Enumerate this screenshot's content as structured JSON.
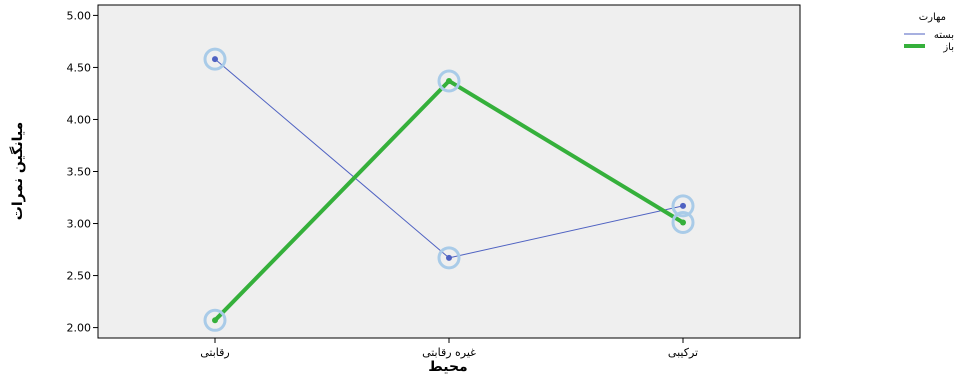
{
  "chart_data": {
    "type": "line",
    "xlabel": "محیط",
    "ylabel": "میانگین نمرات",
    "categories": [
      "رقابتی",
      "غیره رقابتی",
      "ترکیبی"
    ],
    "ylim": [
      1.9,
      5.1
    ],
    "yticks": [
      "5.00",
      "4.50",
      "4.00",
      "3.50",
      "3.00",
      "2.50",
      "2.00"
    ],
    "grid": false,
    "legend": {
      "title": "مهارت",
      "placement": "top-right"
    },
    "series": [
      {
        "name": "بسته",
        "values": [
          4.58,
          2.67,
          3.17
        ],
        "color": "#4f62c2"
      },
      {
        "name": "باز",
        "values": [
          2.07,
          4.37,
          3.01
        ],
        "color": "#35b03b"
      }
    ],
    "plot_background": "#efefef"
  }
}
